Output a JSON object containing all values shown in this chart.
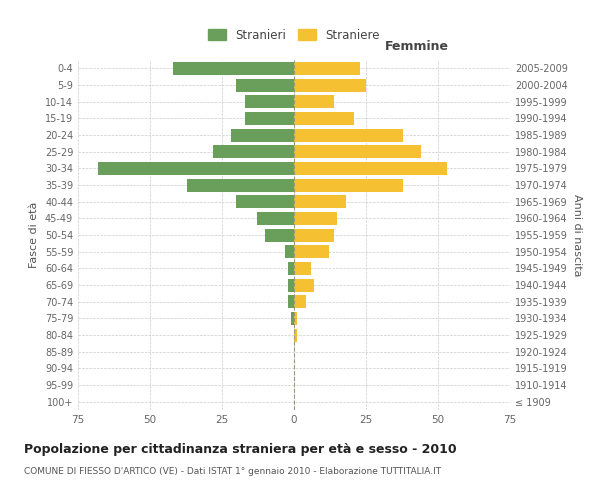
{
  "age_groups": [
    "100+",
    "95-99",
    "90-94",
    "85-89",
    "80-84",
    "75-79",
    "70-74",
    "65-69",
    "60-64",
    "55-59",
    "50-54",
    "45-49",
    "40-44",
    "35-39",
    "30-34",
    "25-29",
    "20-24",
    "15-19",
    "10-14",
    "5-9",
    "0-4"
  ],
  "birth_years": [
    "≤ 1909",
    "1910-1914",
    "1915-1919",
    "1920-1924",
    "1925-1929",
    "1930-1934",
    "1935-1939",
    "1940-1944",
    "1945-1949",
    "1950-1954",
    "1955-1959",
    "1960-1964",
    "1965-1969",
    "1970-1974",
    "1975-1979",
    "1980-1984",
    "1985-1989",
    "1990-1994",
    "1995-1999",
    "2000-2004",
    "2005-2009"
  ],
  "males": [
    0,
    0,
    0,
    0,
    0,
    1,
    2,
    2,
    2,
    3,
    10,
    13,
    20,
    37,
    68,
    28,
    22,
    17,
    17,
    20,
    42
  ],
  "females": [
    0,
    0,
    0,
    0,
    1,
    1,
    4,
    7,
    6,
    12,
    14,
    15,
    18,
    38,
    53,
    44,
    38,
    21,
    14,
    25,
    23
  ],
  "male_color": "#6a9f5b",
  "female_color": "#f5c132",
  "background_color": "#ffffff",
  "grid_color": "#cccccc",
  "title": "Popolazione per cittadinanza straniera per età e sesso - 2010",
  "subtitle": "COMUNE DI FIESSO D'ARTICO (VE) - Dati ISTAT 1° gennaio 2010 - Elaborazione TUTTITALIA.IT",
  "ylabel_left": "Fasce di età",
  "ylabel_right": "Anni di nascita",
  "legend_stranieri": "Stranieri",
  "legend_straniere": "Straniere",
  "femmine_label": "Femmine",
  "xlim": 75
}
